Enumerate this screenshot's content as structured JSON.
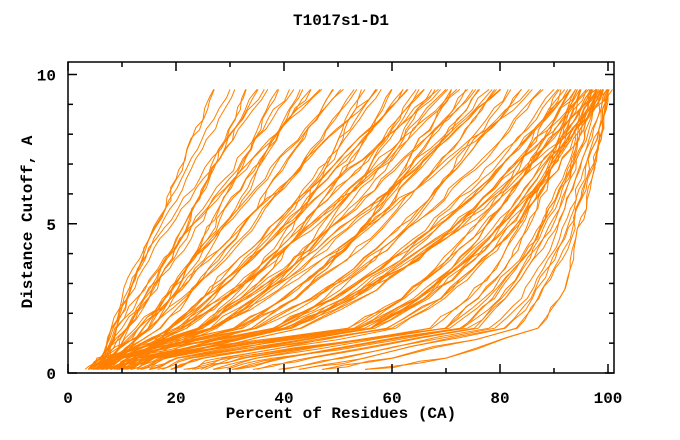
{
  "chart_data": {
    "type": "line",
    "title": "T1017s1-D1",
    "xlabel": "Percent of Residues (CA)",
    "ylabel": "Distance Cutoff, A",
    "xlim": [
      0,
      101
    ],
    "ylim": [
      0,
      10.4
    ],
    "grid": false,
    "legend": "none",
    "line_color": "#ff8000",
    "frame_color": "#000000",
    "x_major_ticks": [
      0,
      20,
      40,
      60,
      80,
      100
    ],
    "x_minor_ticks": [
      10,
      30,
      50,
      70,
      90
    ],
    "y_major_ticks": [
      0,
      5,
      10
    ],
    "y_minor_ticks": [
      1,
      2,
      3,
      4,
      6,
      7,
      8,
      9
    ],
    "cutoffs": [
      0.5,
      1.5,
      2.5,
      3.5,
      4.5,
      5.5,
      6.5,
      7.5,
      8.5,
      9.5
    ],
    "series_note": "each series = percent of CA residues under each distance cutoff, one curve per model; values estimated from plot",
    "series": [
      [
        6,
        8,
        11,
        13,
        15,
        18,
        20,
        22,
        25,
        27
      ],
      [
        7,
        8,
        10,
        12,
        15,
        18,
        21,
        24,
        27,
        30
      ],
      [
        6,
        11,
        15,
        18,
        21,
        23,
        26,
        28,
        31,
        33
      ],
      [
        8,
        11,
        14,
        17,
        20,
        23,
        26,
        29,
        32,
        35
      ],
      [
        7,
        9,
        11,
        14,
        17,
        21,
        25,
        29,
        33,
        37
      ],
      [
        9,
        15,
        19,
        22,
        25,
        28,
        31,
        34,
        36,
        39
      ],
      [
        6,
        10,
        14,
        18,
        22,
        25,
        29,
        33,
        37,
        41
      ],
      [
        8,
        15,
        19,
        23,
        27,
        31,
        34,
        37,
        40,
        43
      ],
      [
        10,
        14,
        18,
        22,
        26,
        29,
        33,
        37,
        41,
        45
      ],
      [
        7,
        9,
        13,
        17,
        21,
        26,
        31,
        36,
        41,
        47
      ],
      [
        9,
        17,
        22,
        26,
        31,
        35,
        38,
        42,
        46,
        49
      ],
      [
        8,
        13,
        18,
        22,
        27,
        32,
        37,
        41,
        46,
        51
      ],
      [
        6,
        15,
        21,
        27,
        32,
        36,
        41,
        45,
        49,
        53
      ],
      [
        10,
        25,
        31,
        36,
        40,
        44,
        47,
        50,
        52,
        55
      ],
      [
        8,
        13,
        19,
        24,
        30,
        35,
        41,
        46,
        52,
        57
      ],
      [
        12,
        21,
        27,
        32,
        37,
        42,
        46,
        50,
        54,
        58
      ],
      [
        7,
        25,
        32,
        38,
        42,
        46,
        50,
        54,
        57,
        60
      ],
      [
        9,
        19,
        26,
        32,
        38,
        43,
        48,
        53,
        58,
        62
      ],
      [
        14,
        19,
        25,
        30,
        36,
        41,
        47,
        52,
        58,
        63
      ],
      [
        8,
        27,
        35,
        41,
        46,
        50,
        55,
        58,
        62,
        65
      ],
      [
        11,
        22,
        29,
        35,
        41,
        46,
        52,
        57,
        61,
        66
      ],
      [
        6,
        27,
        35,
        42,
        47,
        52,
        57,
        61,
        64,
        68
      ],
      [
        13,
        19,
        25,
        32,
        38,
        44,
        50,
        57,
        63,
        69
      ],
      [
        9,
        21,
        29,
        36,
        42,
        48,
        54,
        60,
        65,
        70
      ],
      [
        16,
        34,
        42,
        48,
        53,
        57,
        61,
        64,
        68,
        71
      ],
      [
        7,
        20,
        28,
        36,
        42,
        49,
        55,
        61,
        66,
        72
      ],
      [
        10,
        31,
        40,
        47,
        53,
        58,
        62,
        66,
        70,
        74
      ],
      [
        12,
        24,
        32,
        40,
        46,
        53,
        58,
        64,
        70,
        75
      ],
      [
        8,
        31,
        40,
        47,
        53,
        59,
        63,
        68,
        72,
        76
      ],
      [
        15,
        27,
        35,
        43,
        49,
        56,
        61,
        67,
        73,
        78
      ],
      [
        9,
        32,
        42,
        49,
        56,
        61,
        66,
        71,
        75,
        79
      ],
      [
        11,
        24,
        33,
        41,
        48,
        55,
        62,
        68,
        74,
        80
      ],
      [
        18,
        39,
        48,
        55,
        61,
        66,
        70,
        74,
        78,
        82
      ],
      [
        10,
        35,
        45,
        53,
        59,
        65,
        70,
        75,
        80,
        84
      ],
      [
        13,
        27,
        37,
        45,
        53,
        60,
        67,
        73,
        80,
        86
      ],
      [
        8,
        35,
        46,
        54,
        61,
        68,
        73,
        79,
        83,
        88
      ],
      [
        12,
        38,
        49,
        57,
        64,
        70,
        76,
        81,
        86,
        90
      ],
      [
        20,
        53,
        62,
        68,
        73,
        78,
        82,
        85,
        88,
        91
      ],
      [
        15,
        41,
        51,
        59,
        66,
        72,
        78,
        83,
        88,
        92
      ],
      [
        25,
        56,
        65,
        71,
        76,
        80,
        84,
        87,
        90,
        93
      ],
      [
        10,
        38,
        49,
        58,
        65,
        72,
        78,
        83,
        88,
        93
      ],
      [
        30,
        67,
        74,
        79,
        82,
        85,
        88,
        90,
        92,
        94
      ],
      [
        18,
        43,
        54,
        62,
        69,
        75,
        80,
        85,
        90,
        94
      ],
      [
        14,
        52,
        62,
        69,
        75,
        80,
        84,
        88,
        92,
        95
      ],
      [
        35,
        70,
        76,
        81,
        84,
        87,
        89,
        91,
        93,
        95
      ],
      [
        22,
        56,
        66,
        72,
        78,
        82,
        86,
        90,
        93,
        96
      ],
      [
        12,
        40,
        52,
        60,
        68,
        75,
        80,
        86,
        91,
        96
      ],
      [
        40,
        73,
        79,
        83,
        87,
        89,
        92,
        94,
        95,
        97
      ],
      [
        16,
        54,
        64,
        71,
        77,
        82,
        86,
        90,
        94,
        97
      ],
      [
        28,
        60,
        69,
        75,
        80,
        84,
        88,
        91,
        94,
        97
      ],
      [
        13,
        41,
        53,
        62,
        70,
        76,
        82,
        88,
        93,
        98
      ],
      [
        45,
        76,
        81,
        85,
        88,
        91,
        93,
        95,
        96,
        98
      ],
      [
        20,
        56,
        66,
        73,
        79,
        84,
        88,
        91,
        95,
        98
      ],
      [
        32,
        70,
        77,
        82,
        86,
        89,
        92,
        94,
        96,
        98
      ],
      [
        15,
        54,
        65,
        72,
        78,
        83,
        88,
        92,
        96,
        99
      ],
      [
        50,
        78,
        84,
        87,
        90,
        92,
        94,
        96,
        98,
        99
      ],
      [
        25,
        59,
        69,
        75,
        81,
        85,
        89,
        93,
        96,
        99
      ],
      [
        38,
        73,
        80,
        84,
        88,
        91,
        93,
        95,
        97,
        99
      ],
      [
        55,
        81,
        86,
        89,
        92,
        94,
        96,
        97,
        99,
        100
      ],
      [
        60,
        83,
        87,
        90,
        93,
        94,
        96,
        98,
        99,
        100
      ],
      [
        70,
        87,
        91,
        93,
        94,
        96,
        97,
        98,
        99,
        100
      ],
      [
        8,
        39,
        51,
        61,
        69,
        77,
        83,
        89,
        95,
        100
      ]
    ]
  }
}
